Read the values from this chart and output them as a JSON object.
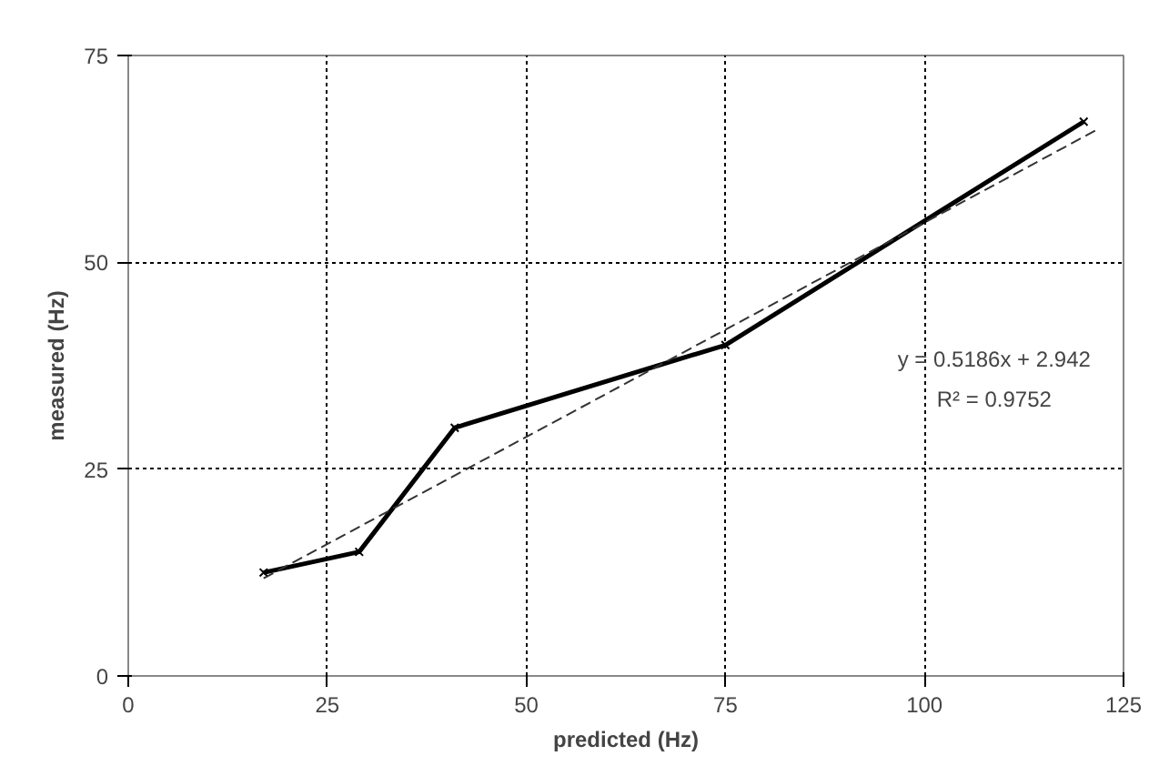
{
  "chart_data": {
    "type": "line",
    "xlabel": "predicted (Hz)",
    "ylabel": "measured (Hz)",
    "xlim": [
      0,
      125
    ],
    "xticks": [
      0,
      25,
      50,
      75,
      100,
      125
    ],
    "ylim": [
      0,
      75
    ],
    "yticks": [
      0,
      25,
      50,
      75
    ],
    "grid": true,
    "series": [
      {
        "x": [
          17,
          29,
          41,
          75,
          120
        ],
        "values": [
          12.5,
          15,
          30,
          40,
          67
        ],
        "color": "#000000",
        "marker": "cross",
        "line_style": "solid"
      },
      {
        "x": [
          17,
          122
        ],
        "values": [
          11.8,
          66.2
        ],
        "color": "#333333",
        "marker": "none",
        "line_style": "dashed"
      }
    ],
    "annotations": [
      "y = 0.5186x + 2.942",
      "R² = 0.9752"
    ]
  }
}
